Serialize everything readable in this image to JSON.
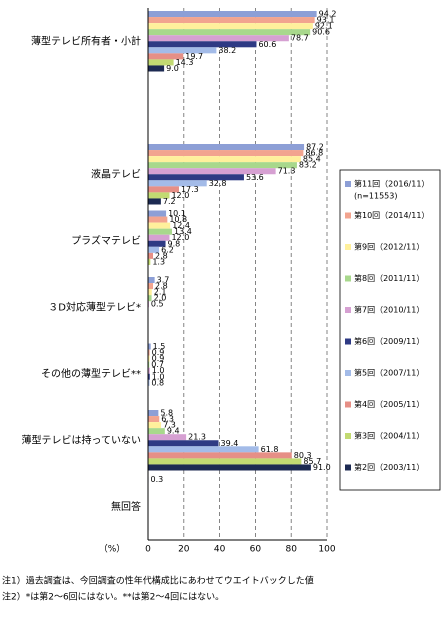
{
  "chart_data": {
    "type": "hbar",
    "categories": [
      "薄型テレビ所有者・小計",
      null,
      "液晶テレビ",
      "プラズマテレビ",
      "３D対応薄型テレビ*",
      "その他の薄型テレビ**",
      "薄型テレビは持っていない",
      "無回答"
    ],
    "series": [
      {
        "name": "第11回（2016/11）",
        "legend_note": "(n=11553)",
        "color": "#8d9fd6",
        "values": [
          94.2,
          null,
          87.2,
          10.1,
          3.7,
          1.5,
          5.8,
          0.3
        ],
        "value_labels": [
          "94.2",
          null,
          "87.2",
          "10.1",
          "3.7",
          "1.5",
          "5.8",
          "0.3"
        ]
      },
      {
        "name": "第10回（2014/11）",
        "color": "#f2a48f",
        "values": [
          93.1,
          null,
          86.8,
          10.8,
          2.8,
          0.9,
          6.3,
          null
        ],
        "value_labels": [
          "93.1",
          null,
          "86.8",
          "10.8",
          "2.8",
          "0.9",
          "6.3",
          null
        ]
      },
      {
        "name": "第9回（2012/11）",
        "color": "#fff09c",
        "values": [
          92.1,
          null,
          85.4,
          12.4,
          2.1,
          0.9,
          7.3,
          null
        ],
        "value_labels": [
          "92.1",
          null,
          "85.4",
          "12.4",
          "2.1",
          "0.9",
          "7.3",
          null
        ]
      },
      {
        "name": "第8回（2011/11）",
        "color": "#a8d88c",
        "values": [
          90.6,
          null,
          83.2,
          13.4,
          2.0,
          0.7,
          9.4,
          null
        ],
        "value_labels": [
          "90.6",
          null,
          "83.2",
          "13.4",
          "2.0",
          "0.7",
          "9.4",
          null
        ]
      },
      {
        "name": "第7回（2010/11）",
        "color": "#d6a0d2",
        "values": [
          78.7,
          null,
          71.3,
          12.0,
          0.5,
          1.0,
          21.3,
          null
        ],
        "value_labels": [
          "78.7",
          null,
          "71.3",
          "12.0",
          "0.5",
          "1.0",
          "21.3",
          null
        ]
      },
      {
        "name": "第6回（2009/11）",
        "color": "#2e3a84",
        "values": [
          60.6,
          null,
          53.6,
          9.8,
          null,
          1.0,
          39.4,
          null
        ],
        "value_labels": [
          "60.6",
          null,
          "53.6",
          "9.8",
          null,
          "1.0",
          "39.4",
          null
        ]
      },
      {
        "name": "第5回（2007/11）",
        "color": "#a3bbe8",
        "values": [
          38.2,
          null,
          32.8,
          6.2,
          null,
          0.8,
          61.8,
          null
        ],
        "value_labels": [
          "38.2",
          null,
          "32.8",
          "6.2",
          null,
          "0.8",
          "61.8",
          null
        ]
      },
      {
        "name": "第4回（2005/11）",
        "color": "#e68f86",
        "values": [
          19.7,
          null,
          17.3,
          2.8,
          null,
          null,
          80.3,
          null
        ],
        "value_labels": [
          "19.7",
          null,
          "17.3",
          "2.8",
          null,
          null,
          "80.3",
          null
        ]
      },
      {
        "name": "第3回（2004/11）",
        "color": "#c2da72",
        "values": [
          14.3,
          null,
          12.0,
          1.3,
          null,
          null,
          85.7,
          null
        ],
        "value_labels": [
          "14.3",
          null,
          "12.0",
          "1.3",
          null,
          null,
          "85.7",
          null
        ]
      },
      {
        "name": "第2回（2003/11）",
        "color": "#1c2a52",
        "values": [
          9.0,
          null,
          7.2,
          null,
          null,
          null,
          91.0,
          null
        ],
        "value_labels": [
          "9.0",
          null,
          "7.2",
          null,
          null,
          null,
          "91.0",
          null
        ]
      }
    ],
    "xlim": [
      0,
      100
    ],
    "xticks": [
      0,
      20,
      40,
      60,
      80,
      100
    ],
    "x_label": "（%）",
    "grid": true,
    "notes": [
      "注1）過去調査は、今回調査の性年代構成比にあわせてウエイトバックした値",
      "注2）*は第2～6回にはない。**は第2～4回にはない。"
    ]
  }
}
